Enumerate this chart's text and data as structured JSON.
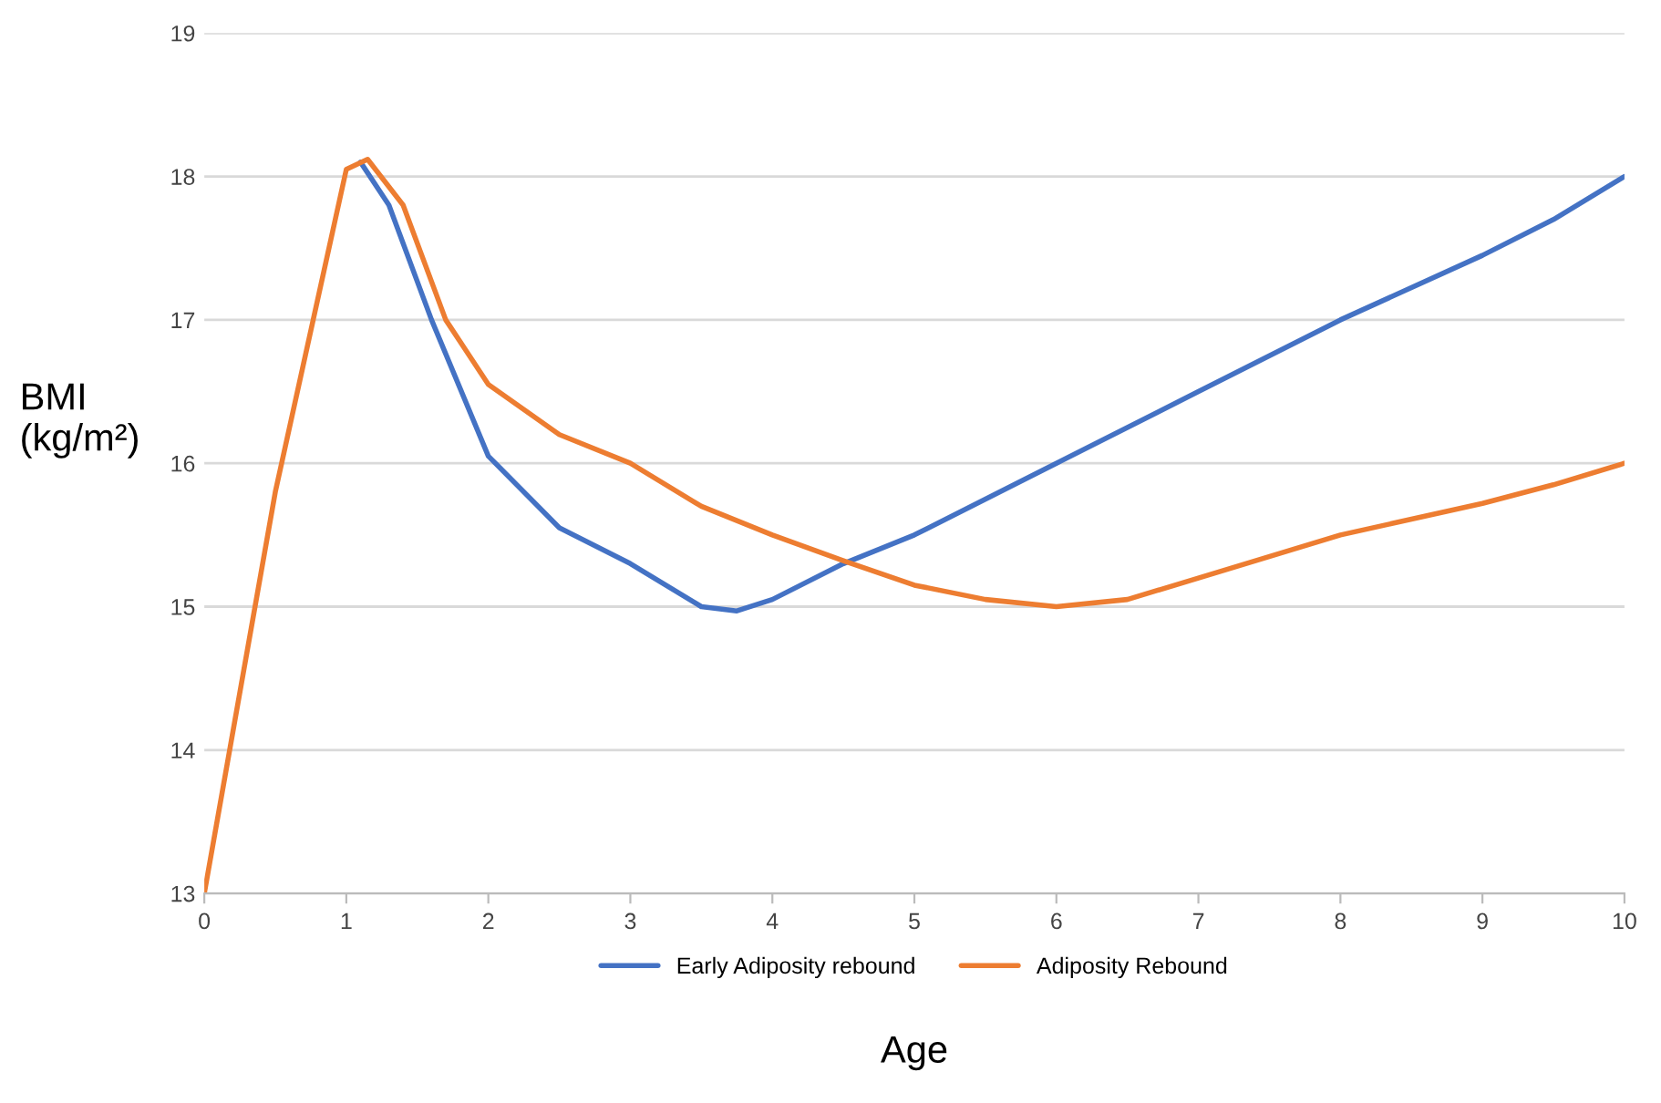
{
  "chart_data": {
    "type": "line",
    "xlabel": "Age",
    "ylabel": "BMI\n(kg/m²)",
    "xlim": [
      0,
      10
    ],
    "xticks": [
      0,
      1,
      2,
      3,
      4,
      5,
      6,
      7,
      8,
      9,
      10
    ],
    "ylim": [
      13,
      19
    ],
    "yticks": [
      13,
      14,
      15,
      16,
      17,
      18,
      19
    ],
    "grid": "y",
    "legend": "bottom",
    "series": [
      {
        "name": "Early Adiposity rebound",
        "color": "#4472c4",
        "x": [
          1.1,
          1.3,
          1.6,
          2,
          2.5,
          3,
          3.5,
          3.75,
          4,
          4.5,
          5,
          6,
          7,
          8,
          9,
          9.5,
          10
        ],
        "values": [
          18.1,
          17.8,
          17,
          16.05,
          15.55,
          15.3,
          15.0,
          14.97,
          15.05,
          15.3,
          15.5,
          16.0,
          16.5,
          17.0,
          17.45,
          17.7,
          18.0
        ]
      },
      {
        "name": "Adiposity Rebound",
        "color": "#ed7d31",
        "x": [
          0,
          0.5,
          1,
          1.15,
          1.4,
          1.7,
          2,
          2.5,
          3,
          3.5,
          4,
          4.5,
          5,
          5.5,
          6,
          6.5,
          7,
          8,
          9,
          9.5,
          10
        ],
        "values": [
          13,
          15.8,
          18.05,
          18.12,
          17.8,
          17.0,
          16.55,
          16.2,
          16.0,
          15.7,
          15.5,
          15.32,
          15.15,
          15.05,
          15.0,
          15.05,
          15.2,
          15.5,
          15.72,
          15.85,
          16.0
        ]
      }
    ]
  }
}
